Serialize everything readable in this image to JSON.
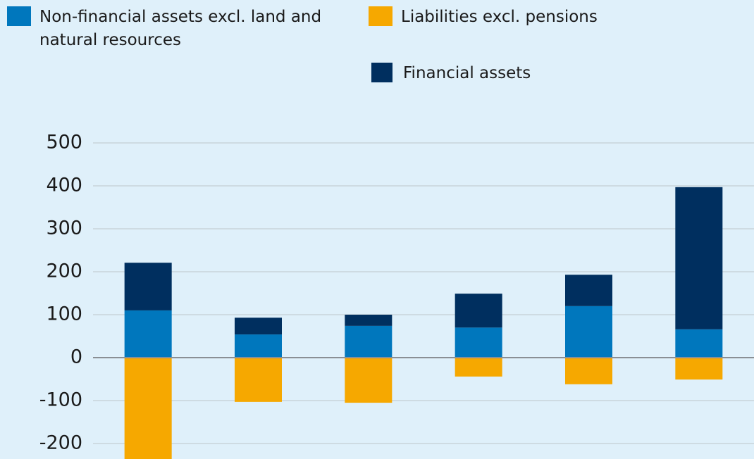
{
  "chart_data": {
    "type": "stacked_bar",
    "categories": [
      null,
      null,
      null,
      null,
      null,
      null
    ],
    "series": [
      {
        "name": "Non-financial assets excl. land and natural resources",
        "color": "#0077bd",
        "values": [
          110,
          54,
          74,
          70,
          120,
          66
        ]
      },
      {
        "name": "Liabilities excl. pensions",
        "color": "#f6a800",
        "values": [
          -250,
          -103,
          -105,
          -44,
          -62,
          -51
        ]
      },
      {
        "name": "Financial assets",
        "color": "#002f5f",
        "values": [
          111,
          39,
          26,
          79,
          73,
          331
        ]
      }
    ],
    "ylim": [
      -236,
      500
    ],
    "yticks": [
      -200,
      -100,
      0,
      100,
      200,
      300,
      400,
      500
    ],
    "grid": true
  }
}
